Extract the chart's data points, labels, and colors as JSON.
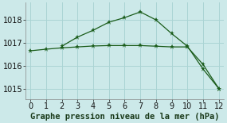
{
  "title": "Graphe pression niveau de la mer (hPa)",
  "background_color": "#cce9e9",
  "grid_color": "#aad4d4",
  "line_color": "#1a5c1a",
  "series1_x": [
    2,
    3,
    4,
    5,
    6,
    7,
    8,
    9,
    10,
    11,
    12
  ],
  "series1_y": [
    1016.85,
    1017.25,
    1017.55,
    1017.9,
    1018.1,
    1018.35,
    1018.0,
    1017.4,
    1016.85,
    1015.85,
    1015.0
  ],
  "series2_x": [
    0,
    1,
    2,
    3,
    4,
    5,
    6,
    7,
    8,
    9,
    10,
    11,
    12
  ],
  "series2_y": [
    1016.65,
    1016.72,
    1016.78,
    1016.82,
    1016.86,
    1016.88,
    1016.88,
    1016.88,
    1016.85,
    1016.82,
    1016.82,
    1016.05,
    1015.0
  ],
  "xlim": [
    -0.3,
    12.3
  ],
  "ylim": [
    1014.55,
    1018.75
  ],
  "yticks": [
    1015,
    1016,
    1017,
    1018
  ],
  "xticks": [
    0,
    1,
    2,
    3,
    4,
    5,
    6,
    7,
    8,
    9,
    10,
    11,
    12
  ],
  "title_fontsize": 7.5,
  "tick_fontsize": 7
}
